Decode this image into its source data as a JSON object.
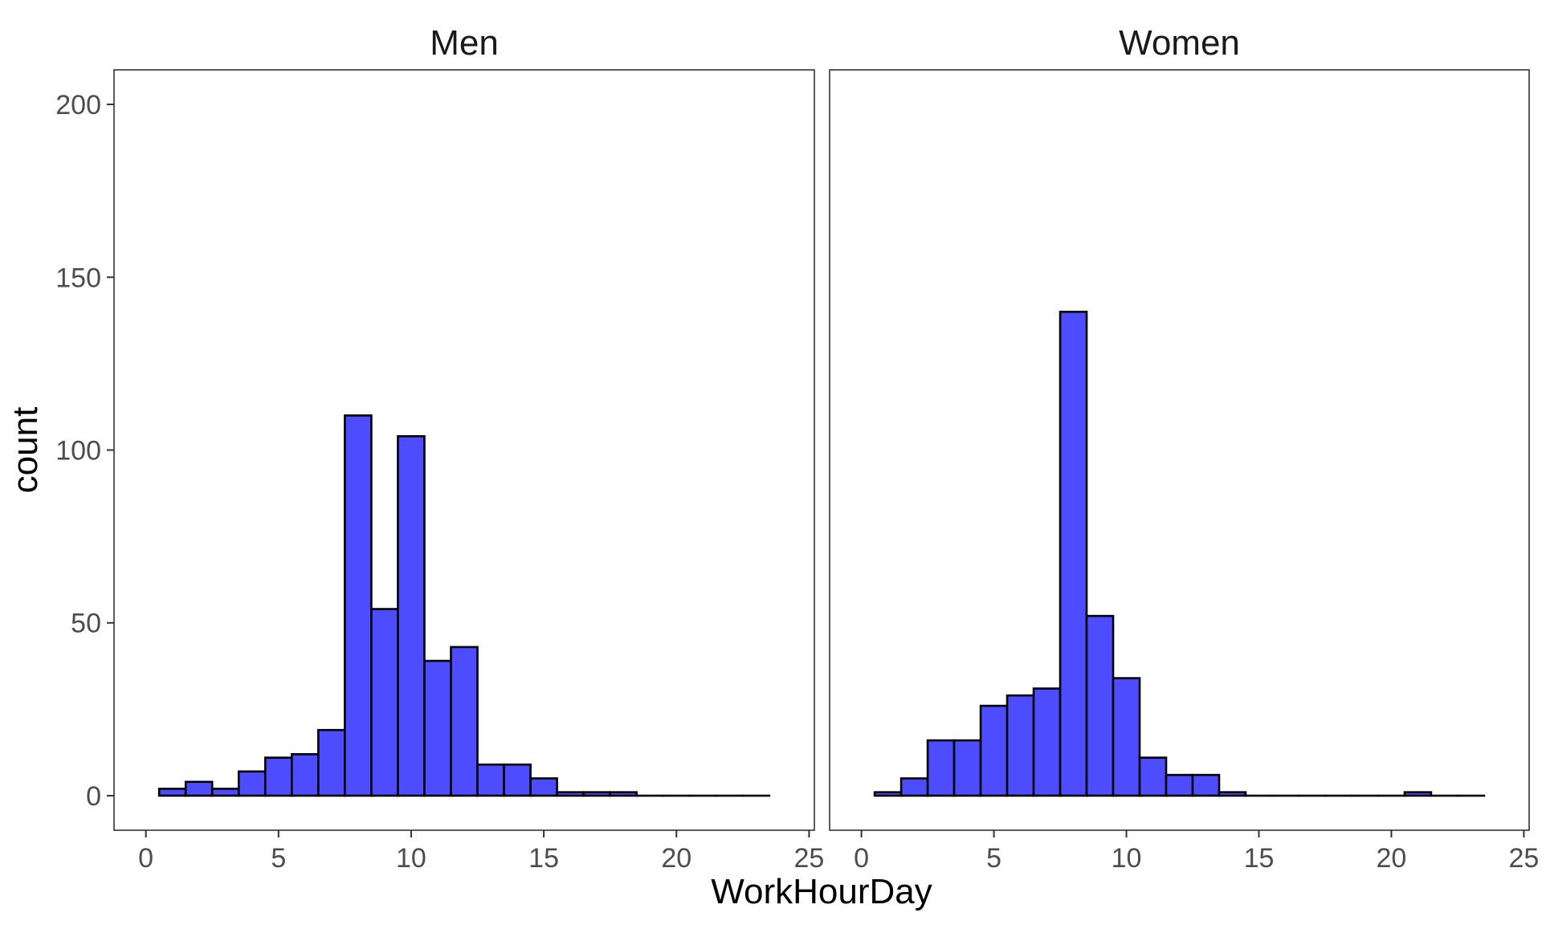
{
  "chart_data": {
    "type": "bar",
    "facets": [
      {
        "title": "Men",
        "bins": [
          {
            "x": 1,
            "count": 2
          },
          {
            "x": 2,
            "count": 4
          },
          {
            "x": 3,
            "count": 2
          },
          {
            "x": 4,
            "count": 7
          },
          {
            "x": 5,
            "count": 11
          },
          {
            "x": 6,
            "count": 12
          },
          {
            "x": 7,
            "count": 19
          },
          {
            "x": 8,
            "count": 110
          },
          {
            "x": 9,
            "count": 54
          },
          {
            "x": 10,
            "count": 104
          },
          {
            "x": 11,
            "count": 39
          },
          {
            "x": 12,
            "count": 43
          },
          {
            "x": 13,
            "count": 9
          },
          {
            "x": 14,
            "count": 9
          },
          {
            "x": 15,
            "count": 5
          },
          {
            "x": 16,
            "count": 1
          },
          {
            "x": 17,
            "count": 1
          },
          {
            "x": 18,
            "count": 1
          },
          {
            "x": 19,
            "count": 0
          },
          {
            "x": 20,
            "count": 0
          },
          {
            "x": 21,
            "count": 0
          },
          {
            "x": 22,
            "count": 0
          },
          {
            "x": 23,
            "count": 0
          }
        ]
      },
      {
        "title": "Women",
        "bins": [
          {
            "x": 1,
            "count": 1
          },
          {
            "x": 2,
            "count": 5
          },
          {
            "x": 3,
            "count": 16
          },
          {
            "x": 4,
            "count": 16
          },
          {
            "x": 5,
            "count": 26
          },
          {
            "x": 6,
            "count": 29
          },
          {
            "x": 7,
            "count": 31
          },
          {
            "x": 8,
            "count": 140
          },
          {
            "x": 9,
            "count": 52
          },
          {
            "x": 10,
            "count": 34
          },
          {
            "x": 11,
            "count": 11
          },
          {
            "x": 12,
            "count": 6
          },
          {
            "x": 13,
            "count": 6
          },
          {
            "x": 14,
            "count": 1
          },
          {
            "x": 15,
            "count": 0
          },
          {
            "x": 16,
            "count": 0
          },
          {
            "x": 17,
            "count": 0
          },
          {
            "x": 18,
            "count": 0
          },
          {
            "x": 19,
            "count": 0
          },
          {
            "x": 20,
            "count": 0
          },
          {
            "x": 21,
            "count": 1
          },
          {
            "x": 22,
            "count": 0
          },
          {
            "x": 23,
            "count": 0
          }
        ]
      }
    ],
    "bin_width": 1,
    "xlabel": "WorkHourDay",
    "ylabel": "count",
    "xlim": [
      -1.2,
      25.2
    ],
    "ylim": [
      -10,
      210
    ],
    "x_ticks": [
      "0",
      "5",
      "10",
      "15",
      "20",
      "25"
    ],
    "y_ticks": [
      "0",
      "50",
      "100",
      "150",
      "200"
    ],
    "grid": false,
    "legend": "none",
    "colors": {
      "bar_fill": "#4d4dff",
      "bar_stroke": "#000000",
      "panel_border": "#333333",
      "background": "#ffffff"
    }
  }
}
